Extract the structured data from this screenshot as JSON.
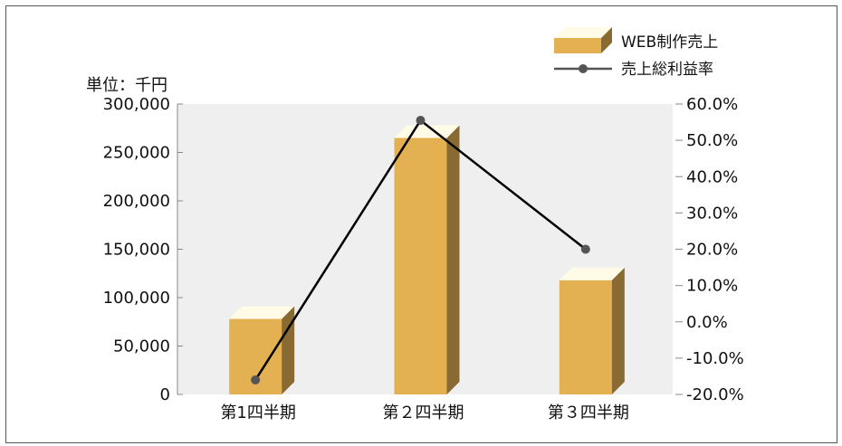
{
  "chart_data": {
    "type": "bar",
    "unit_label": "単位：千円",
    "categories": [
      "第1四半期",
      "第２四半期",
      "第３四半期"
    ],
    "series": [
      {
        "name": "WEB制作売上",
        "type": "bar",
        "axis": "left",
        "values": [
          78000,
          265000,
          118000
        ]
      },
      {
        "name": "売上総利益率",
        "type": "line",
        "axis": "right",
        "values": [
          -16.0,
          55.5,
          20.0
        ]
      }
    ],
    "y_left": {
      "ylim": [
        0,
        300000
      ],
      "ticks": [
        0,
        50000,
        100000,
        150000,
        200000,
        250000,
        300000
      ],
      "tick_labels": [
        "0",
        "50,000",
        "100,000",
        "150,000",
        "200,000",
        "250,000",
        "300,000"
      ]
    },
    "y_right": {
      "ylim": [
        -20,
        60
      ],
      "ticks": [
        -20,
        -10,
        0,
        10,
        20,
        30,
        40,
        50,
        60
      ],
      "tick_labels": [
        "-20.0%",
        "-10.0%",
        "0.0%",
        "10.0%",
        "20.0%",
        "30.0%",
        "40.0%",
        "50.0%",
        "60.0%"
      ]
    },
    "legend": [
      {
        "label": "WEB制作売上",
        "symbol": "bar"
      },
      {
        "label": "売上総利益率",
        "symbol": "line"
      }
    ],
    "legend_position": "top-right",
    "plot_background": "#efefef",
    "colors": {
      "bar_front": "#e3b052",
      "bar_side": "#8a6a33",
      "bar_top": "#fffbe6",
      "line": "#000000",
      "marker": "#555555"
    }
  }
}
